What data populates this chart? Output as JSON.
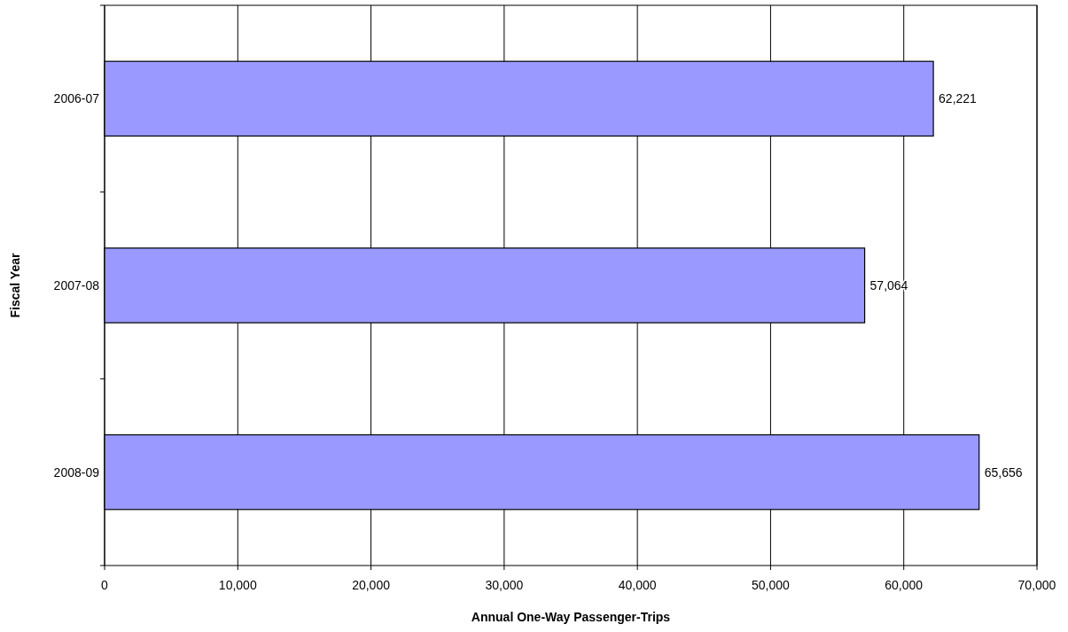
{
  "chart_data": {
    "type": "bar",
    "orientation": "horizontal",
    "xlabel": "Annual One-Way Passenger-Trips",
    "ylabel": "Fiscal Year",
    "categories": [
      "2006-07",
      "2007-08",
      "2008-09"
    ],
    "values": [
      62221,
      57064,
      65656
    ],
    "value_labels": [
      "62,221",
      "57,064",
      "65,656"
    ],
    "color": "#9999ff",
    "xlim": [
      0,
      70000
    ],
    "xticks": [
      {
        "value": 0,
        "label": "0"
      },
      {
        "value": 10000,
        "label": "10,000"
      },
      {
        "value": 20000,
        "label": "20,000"
      },
      {
        "value": 30000,
        "label": "30,000"
      },
      {
        "value": 40000,
        "label": "40,000"
      },
      {
        "value": 50000,
        "label": "50,000"
      },
      {
        "value": 60000,
        "label": "60,000"
      },
      {
        "value": 70000,
        "label": "70,000"
      }
    ],
    "grid": "x"
  }
}
